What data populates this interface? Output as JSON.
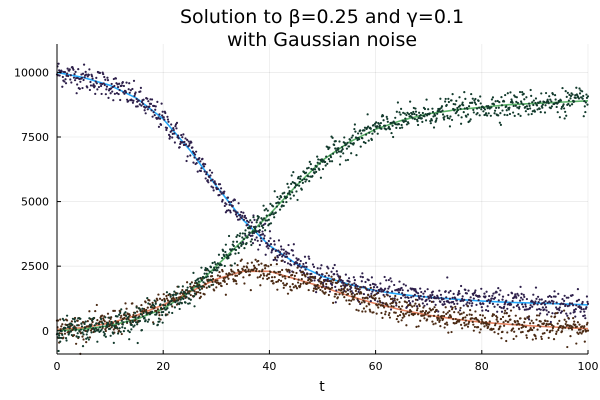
{
  "chart_data": {
    "type": "scatter",
    "title_line1": "Solution to β=0.25 and γ=0.1",
    "title_line2": "with Gaussian noise",
    "xlabel": "t",
    "ylabel": "",
    "xlim": [
      0,
      100
    ],
    "ylim": [
      -900,
      11100
    ],
    "xticks": [
      0,
      20,
      40,
      60,
      80,
      100
    ],
    "yticks": [
      0,
      2500,
      5000,
      7500,
      10000
    ],
    "grid": true,
    "legend": "none",
    "noise_sd": 250,
    "series": [
      {
        "role": "susceptible",
        "line_color": "#009AFA",
        "point_color": "#2d1f4a",
        "t": [
          0,
          5,
          10,
          15,
          20,
          25,
          30,
          35,
          40,
          45,
          50,
          55,
          60,
          65,
          70,
          75,
          80,
          85,
          90,
          95,
          100
        ],
        "values": [
          10000,
          9800,
          9500,
          9000,
          8200,
          7000,
          5600,
          4300,
          3300,
          2600,
          2100,
          1800,
          1550,
          1400,
          1300,
          1220,
          1150,
          1100,
          1070,
          1040,
          1000
        ]
      },
      {
        "role": "infected",
        "line_color": "#E36F47",
        "point_color": "#4a2a14",
        "t": [
          0,
          5,
          10,
          15,
          20,
          25,
          30,
          35,
          40,
          45,
          50,
          55,
          60,
          65,
          70,
          75,
          80,
          85,
          90,
          95,
          100
        ],
        "values": [
          50,
          120,
          300,
          600,
          1000,
          1500,
          2000,
          2300,
          2300,
          2000,
          1700,
          1350,
          1050,
          800,
          600,
          450,
          330,
          250,
          180,
          130,
          80
        ]
      },
      {
        "role": "recovered",
        "line_color": "#3EA44E",
        "point_color": "#123a2c",
        "t": [
          0,
          5,
          10,
          15,
          20,
          25,
          30,
          35,
          40,
          45,
          50,
          55,
          60,
          65,
          70,
          75,
          80,
          85,
          90,
          95,
          100
        ],
        "values": [
          0,
          60,
          200,
          450,
          850,
          1500,
          2500,
          3500,
          4500,
          5600,
          6600,
          7300,
          7800,
          8150,
          8400,
          8550,
          8650,
          8750,
          8800,
          8850,
          8900
        ]
      }
    ]
  }
}
